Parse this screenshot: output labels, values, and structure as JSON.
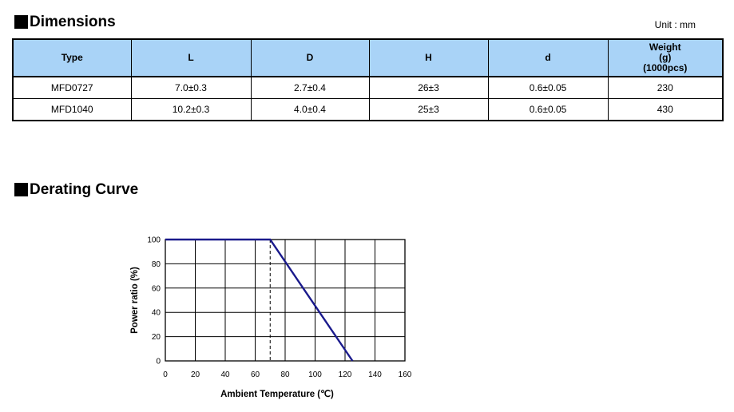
{
  "dimensions": {
    "title": "Dimensions",
    "unit": "Unit : mm",
    "headers": [
      "Type",
      "L",
      "D",
      "H",
      "d",
      "Weight\n(g)\n(1000pcs)"
    ],
    "rows": [
      [
        "MFD0727",
        "7.0±0.3",
        "2.7±0.4",
        "26±3",
        "0.6±0.05",
        "230"
      ],
      [
        "MFD1040",
        "10.2±0.3",
        "4.0±0.4",
        "25±3",
        "0.6±0.05",
        "430"
      ]
    ]
  },
  "derating": {
    "title": "Derating Curve"
  },
  "chart_data": {
    "type": "line",
    "title": "",
    "xlabel": "Ambient Temperature (℃)",
    "ylabel": "Power ratio (%)",
    "xlim": [
      0,
      160
    ],
    "ylim": [
      0,
      100
    ],
    "xticks": [
      0,
      20,
      40,
      60,
      80,
      100,
      120,
      140,
      160
    ],
    "yticks": [
      0,
      20,
      40,
      60,
      80,
      100
    ],
    "grid": true,
    "line_color": "#1a1a8c",
    "series": [
      {
        "x": [
          0,
          70,
          125
        ],
        "y": [
          100,
          100,
          0
        ]
      }
    ],
    "reference_line": {
      "x": 70,
      "style": "dashed"
    }
  }
}
